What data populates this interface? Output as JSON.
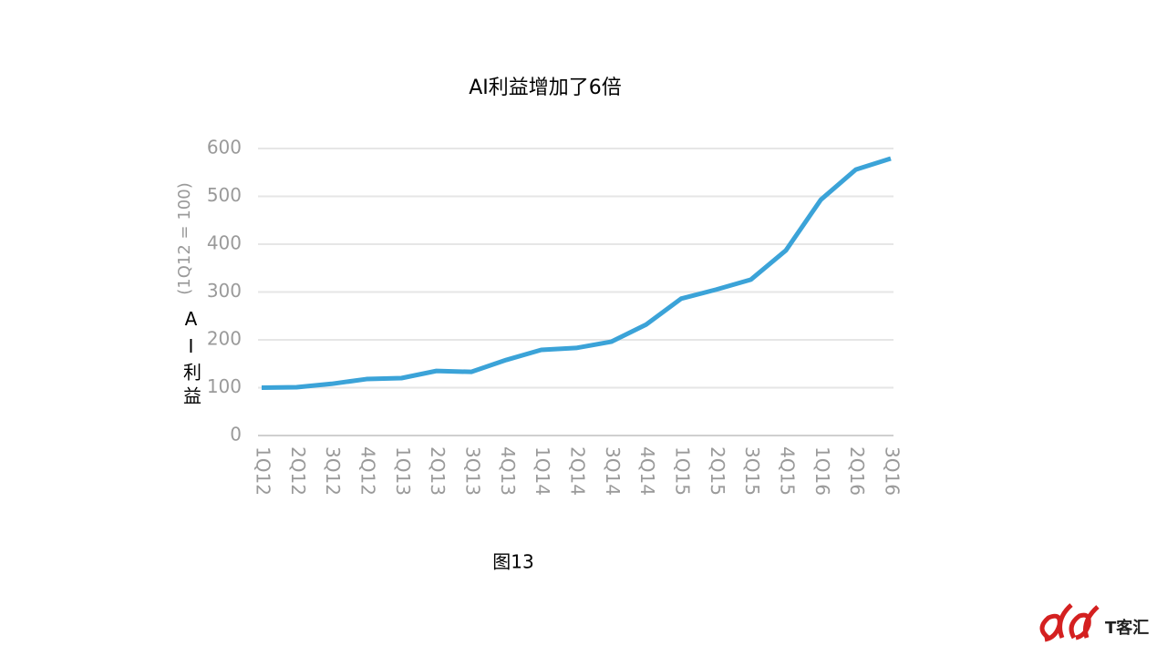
{
  "chart_data": {
    "type": "line",
    "title": "AI利益增加了6倍",
    "ylabel": "AI利益",
    "ylabel_note": "(1Q12 = 100)",
    "categories": [
      "1Q12",
      "2Q12",
      "3Q12",
      "4Q12",
      "1Q13",
      "2Q13",
      "3Q13",
      "4Q13",
      "1Q14",
      "2Q14",
      "3Q14",
      "4Q14",
      "1Q15",
      "2Q15",
      "3Q15",
      "4Q15",
      "1Q16",
      "2Q16",
      "3Q16"
    ],
    "series": [
      {
        "name": "AI利益",
        "color": "#3ba3d8",
        "values": [
          100,
          101,
          108,
          118,
          120,
          135,
          133,
          158,
          179,
          183,
          196,
          232,
          286,
          305,
          326,
          387,
          493,
          556,
          579
        ]
      }
    ],
    "ylim": [
      0,
      600
    ],
    "yticks": [
      0,
      100,
      200,
      300,
      400,
      500,
      600
    ],
    "grid": true
  },
  "caption": "图13",
  "logo_text": "T客汇"
}
